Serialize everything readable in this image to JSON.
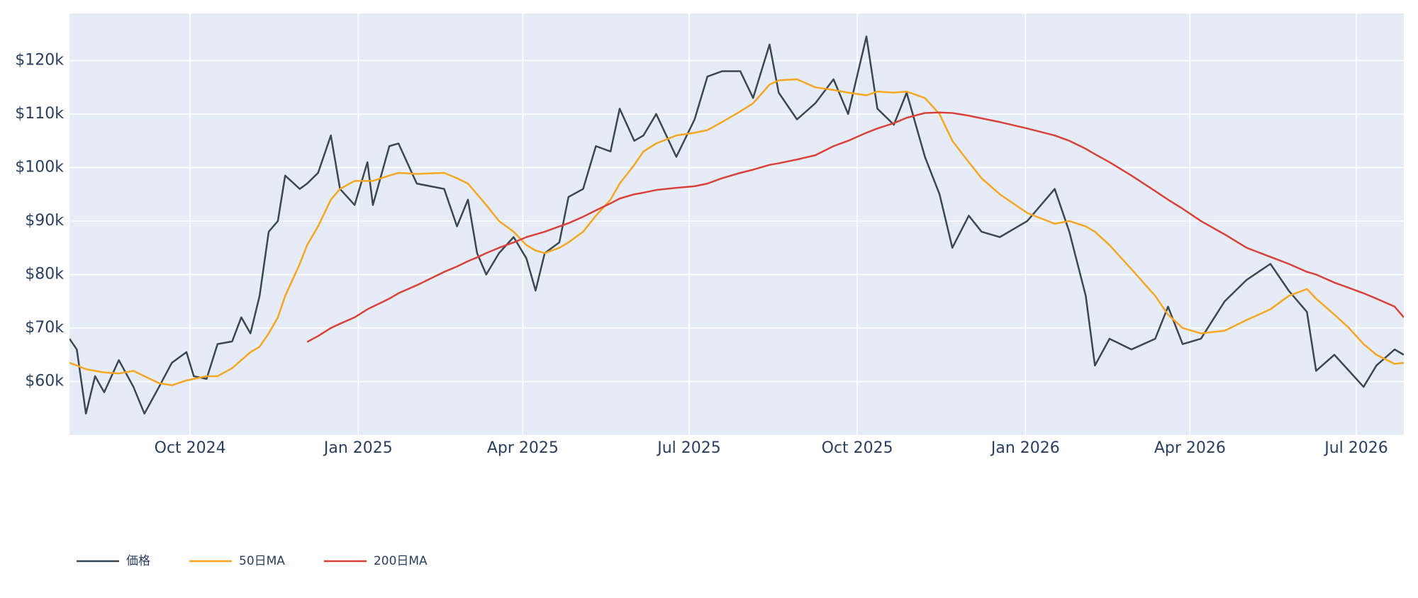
{
  "chart_data": {
    "type": "line",
    "x": [
      "2024-07-27",
      "2024-07-31",
      "2024-08-05",
      "2024-08-10",
      "2024-08-15",
      "2024-08-23",
      "2024-08-31",
      "2024-09-06",
      "2024-09-14",
      "2024-09-21",
      "2024-09-29",
      "2024-10-03",
      "2024-10-10",
      "2024-10-16",
      "2024-10-24",
      "2024-10-29",
      "2024-11-03",
      "2024-11-08",
      "2024-11-13",
      "2024-11-18",
      "2024-11-22",
      "2024-11-30",
      "2024-12-04",
      "2024-12-10",
      "2024-12-17",
      "2024-12-22",
      "2024-12-30",
      "2025-01-06",
      "2025-01-09",
      "2025-01-18",
      "2025-01-23",
      "2025-02-02",
      "2025-02-17",
      "2025-02-24",
      "2025-03-02",
      "2025-03-07",
      "2025-03-12",
      "2025-03-19",
      "2025-03-27",
      "2025-04-03",
      "2025-04-08",
      "2025-04-13",
      "2025-04-21",
      "2025-04-26",
      "2025-05-04",
      "2025-05-11",
      "2025-05-19",
      "2025-05-24",
      "2025-06-01",
      "2025-06-06",
      "2025-06-13",
      "2025-06-24",
      "2025-07-04",
      "2025-07-11",
      "2025-07-19",
      "2025-07-29",
      "2025-08-05",
      "2025-08-14",
      "2025-08-19",
      "2025-08-29",
      "2025-09-08",
      "2025-09-18",
      "2025-09-26",
      "2025-10-06",
      "2025-10-12",
      "2025-10-21",
      "2025-10-28",
      "2025-11-07",
      "2025-11-15",
      "2025-11-22",
      "2025-12-01",
      "2025-12-08",
      "2025-12-18",
      "2026-01-02",
      "2026-01-17",
      "2026-01-25",
      "2026-02-03",
      "2026-02-08",
      "2026-02-16",
      "2026-02-28",
      "2026-03-13",
      "2026-03-20",
      "2026-03-28",
      "2026-04-07",
      "2026-04-20",
      "2026-05-02",
      "2026-05-15",
      "2026-05-25",
      "2026-06-04",
      "2026-06-09",
      "2026-06-19",
      "2026-06-27",
      "2026-07-05",
      "2026-07-12",
      "2026-07-22",
      "2026-07-27"
    ],
    "series": [
      {
        "name": "価格",
        "color": "#3b4752",
        "values": [
          68000,
          66000,
          54000,
          61000,
          58000,
          64000,
          59000,
          54000,
          59000,
          63500,
          65500,
          61000,
          60500,
          67000,
          67500,
          72000,
          69000,
          76000,
          88000,
          90000,
          98500,
          96000,
          97000,
          99000,
          106000,
          96000,
          93000,
          101000,
          93000,
          104000,
          104500,
          97000,
          96000,
          89000,
          94000,
          84000,
          80000,
          84000,
          87000,
          83000,
          77000,
          84000,
          86000,
          94500,
          96000,
          104000,
          103000,
          111000,
          105000,
          106000,
          110000,
          102000,
          109000,
          117000,
          118000,
          118000,
          113000,
          123000,
          114000,
          109000,
          112000,
          116500,
          110000,
          124500,
          111000,
          108000,
          114000,
          102000,
          95000,
          85000,
          91000,
          88000,
          87000,
          90000,
          96000,
          88000,
          76000,
          63000,
          68000,
          66000,
          68000,
          74000,
          67000,
          68000,
          75000,
          79000,
          82000,
          77000,
          73000,
          62000,
          65000,
          62000,
          59000,
          63000,
          66000,
          65000
        ]
      },
      {
        "name": "50日MA",
        "color": "#f5a623",
        "values": [
          63500,
          63000,
          62300,
          62000,
          61700,
          61500,
          62000,
          61000,
          59700,
          59300,
          60200,
          60500,
          61000,
          61000,
          62500,
          64000,
          65500,
          66500,
          69000,
          72000,
          76000,
          82000,
          85500,
          89000,
          94000,
          96000,
          97500,
          97500,
          97500,
          98500,
          99000,
          98800,
          99000,
          98000,
          97000,
          95000,
          93000,
          90000,
          88000,
          85500,
          84500,
          84000,
          85000,
          86000,
          88000,
          91000,
          94000,
          97000,
          100500,
          103000,
          104500,
          106000,
          106500,
          107000,
          108500,
          110500,
          112000,
          115500,
          116300,
          116500,
          115000,
          114500,
          114000,
          113500,
          114200,
          114000,
          114200,
          113000,
          110000,
          105000,
          101000,
          98000,
          95000,
          91500,
          89500,
          90000,
          89000,
          88000,
          85500,
          81000,
          76000,
          72500,
          70000,
          69000,
          69500,
          71500,
          73500,
          76000,
          77300,
          75500,
          72500,
          70000,
          67000,
          65000,
          63300,
          63500
        ]
      },
      {
        "name": "200日MA",
        "color": "#d9413a",
        "values": [
          null,
          null,
          null,
          null,
          null,
          null,
          null,
          null,
          null,
          null,
          null,
          null,
          null,
          null,
          null,
          null,
          null,
          null,
          null,
          null,
          null,
          null,
          67400,
          68500,
          70000,
          70800,
          72000,
          73500,
          74000,
          75500,
          76500,
          78000,
          80500,
          81500,
          82500,
          83200,
          84000,
          85000,
          86000,
          87000,
          87500,
          88000,
          89000,
          89600,
          90800,
          92000,
          93300,
          94200,
          95000,
          95300,
          95800,
          96200,
          96500,
          97000,
          98000,
          99000,
          99600,
          100500,
          100800,
          101500,
          102300,
          104000,
          105000,
          106500,
          107300,
          108300,
          109300,
          110200,
          110300,
          110200,
          109700,
          109200,
          108500,
          107300,
          106000,
          105000,
          103500,
          102500,
          101000,
          98500,
          95600,
          94000,
          92300,
          90000,
          87500,
          85000,
          83300,
          82000,
          80500,
          80000,
          78500,
          77500,
          76500,
          75500,
          74000,
          72000
        ]
      }
    ],
    "xlim": [
      "2024-07-27",
      "2026-07-27"
    ],
    "xticks": [
      {
        "value": "2024-10-01",
        "label": "Oct 2024"
      },
      {
        "value": "2025-01-01",
        "label": "Jan 2025"
      },
      {
        "value": "2025-04-01",
        "label": "Apr 2025"
      },
      {
        "value": "2025-07-01",
        "label": "Jul 2025"
      },
      {
        "value": "2025-10-01",
        "label": "Oct 2025"
      },
      {
        "value": "2026-01-01",
        "label": "Jan 2026"
      },
      {
        "value": "2026-04-01",
        "label": "Apr 2026"
      },
      {
        "value": "2026-07-01",
        "label": "Jul 2026"
      }
    ],
    "ylim": [
      50000,
      128800
    ],
    "yticks": [
      {
        "value": 60000,
        "label": "$60k"
      },
      {
        "value": 70000,
        "label": "$70k"
      },
      {
        "value": 80000,
        "label": "$80k"
      },
      {
        "value": 90000,
        "label": "$90k"
      },
      {
        "value": 100000,
        "label": "$100k"
      },
      {
        "value": 110000,
        "label": "$110k"
      },
      {
        "value": 120000,
        "label": "$120k"
      }
    ],
    "grid": true,
    "legend": "bottom-left"
  }
}
